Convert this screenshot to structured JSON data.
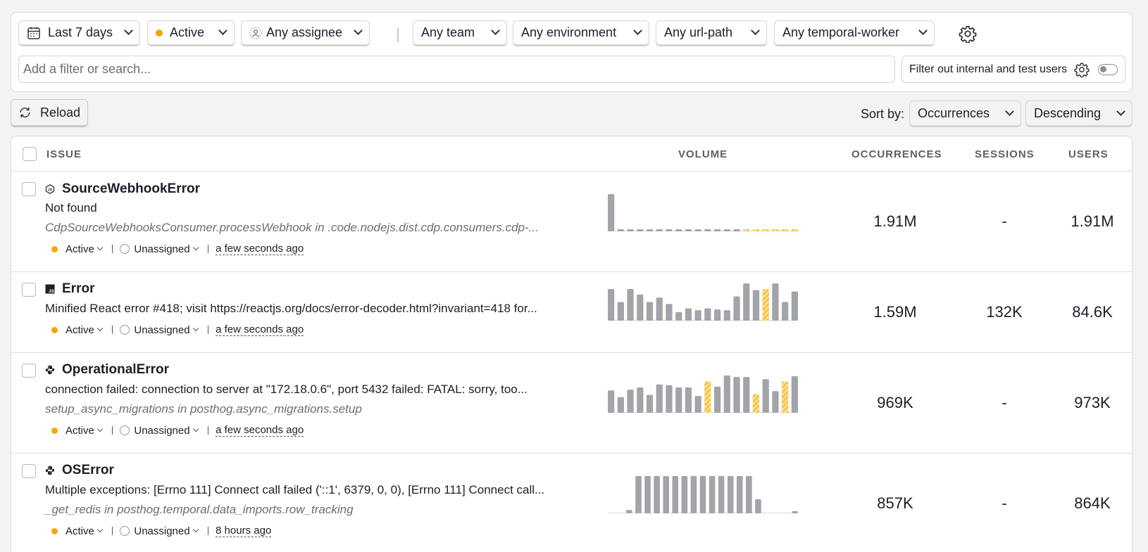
{
  "filters": {
    "date_range": "Last 7 days",
    "status": "Active",
    "assignee": "Any assignee",
    "team": "Any team",
    "environment": "Any environment",
    "url_path": "Any url-path",
    "temporal_worker": "Any temporal-worker",
    "search_placeholder": "Add a filter or search...",
    "internal_filter_label": "Filter out internal and test users",
    "internal_filter_enabled": false
  },
  "actions": {
    "reload_label": "Reload",
    "sort_by_label": "Sort by:",
    "sort_field": "Occurrences",
    "sort_order": "Descending"
  },
  "table": {
    "columns": {
      "issue": "ISSUE",
      "volume": "VOLUME",
      "occurrences": "OCCURRENCES",
      "sessions": "SESSIONS",
      "users": "USERS"
    },
    "rows": [
      {
        "title": "SourceWebhookError",
        "runtime_icon": "nodejs-icon",
        "description": "Not found",
        "source": "CdpSourceWebhooksConsumer.processWebhook in .code.nodejs.dist.cdp.consumers.cdp-...",
        "status": "Active",
        "assignee": "Unassigned",
        "last_seen": "a few seconds ago",
        "occurrences": "1.91M",
        "sessions": "-",
        "users": "1.91M",
        "volume": [
          100,
          5,
          5,
          5,
          5,
          5,
          5,
          5,
          5,
          5,
          5,
          5,
          5,
          5,
          5,
          5,
          5,
          5,
          5,
          5
        ],
        "volume_highlight_from": 14
      },
      {
        "title": "Error",
        "runtime_icon": "javascript-icon",
        "description": "Minified React error #418; visit https://reactjs.org/docs/error-decoder.html?invariant=418 for...",
        "source": "",
        "status": "Active",
        "assignee": "Unassigned",
        "last_seen": "a few seconds ago",
        "occurrences": "1.59M",
        "sessions": "132K",
        "users": "84.6K",
        "volume": [
          85,
          50,
          85,
          70,
          50,
          62,
          45,
          23,
          33,
          28,
          33,
          30,
          28,
          65,
          100,
          82,
          85,
          100,
          50,
          78
        ],
        "volume_highlight_index": 16
      },
      {
        "title": "OperationalError",
        "runtime_icon": "python-icon",
        "description": "connection failed: connection to server at \"172.18.0.6\", port 5432 failed: FATAL: sorry, too...",
        "source": "setup_async_migrations in posthog.async_migrations.setup",
        "status": "Active",
        "assignee": "Unassigned",
        "last_seen": "a few seconds ago",
        "occurrences": "969K",
        "sessions": "-",
        "users": "973K",
        "volume": [
          60,
          42,
          62,
          68,
          48,
          76,
          74,
          68,
          68,
          45,
          84,
          70,
          100,
          96,
          96,
          50,
          90,
          58,
          84,
          98
        ],
        "volume_highlight_indices": [
          10,
          15,
          18
        ]
      },
      {
        "title": "OSError",
        "runtime_icon": "python-icon",
        "description": "Multiple exceptions: [Errno 111] Connect call failed ('::1', 6379, 0, 0), [Errno 111] Connect call...",
        "source": "_get_redis in posthog.temporal.data_imports.row_tracking",
        "status": "Active",
        "assignee": "Unassigned",
        "last_seen": "8 hours ago",
        "occurrences": "857K",
        "sessions": "-",
        "users": "864K",
        "volume": [
          0,
          0,
          9,
          100,
          100,
          100,
          100,
          100,
          100,
          100,
          100,
          100,
          100,
          100,
          100,
          100,
          38,
          0,
          0,
          0,
          6
        ]
      }
    ]
  },
  "colors": {
    "status_active": "#f4a60b",
    "bar_default": "#a3a4aa",
    "bar_highlight": "#f6c342"
  }
}
